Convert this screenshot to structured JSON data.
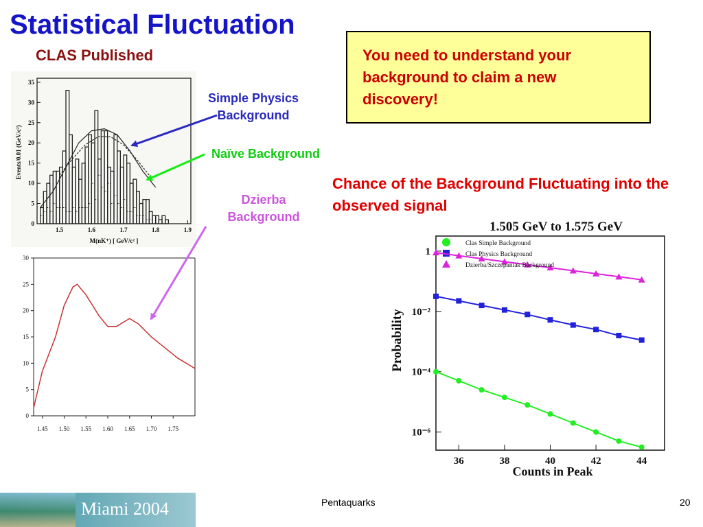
{
  "slide": {
    "title": "Statistical Fluctuation",
    "subtitle": "CLAS Published",
    "callout": "You need to understand your background to claim a new discovery!",
    "labels": {
      "simple_physics": [
        "Simple Physics",
        "Background"
      ],
      "naive": "Naïve Background",
      "dzierba": [
        "Dzierba",
        "Background"
      ]
    },
    "chance_text": "Chance of the Background Fluctuating into the observed signal",
    "footer": {
      "banner": "Miami 2004",
      "center": "Pentaquarks",
      "page": "20"
    },
    "colors": {
      "title": "#1414c8",
      "subtitle": "#8b1010",
      "callout_bg": "#ffff99",
      "callout_text": "#cc0000",
      "arrow_blue": "#2a2ac0",
      "arrow_green": "#10ee10",
      "arrow_violet": "#cc66ee"
    }
  },
  "chart_data": [
    {
      "type": "bar",
      "ylabel": "Events/0.01 (GeV/c²)",
      "xlabel": "M(nK⁺) [ GeV/c² ]",
      "x_ticks": [
        "1.5",
        "1.6",
        "1.7",
        "1.8",
        "1.9"
      ],
      "y_ticks": [
        "0",
        "5",
        "10",
        "15",
        "20",
        "25",
        "30",
        "35"
      ],
      "xlim": [
        1.43,
        1.91
      ],
      "ylim": [
        0,
        36
      ],
      "bin_width": 0.01,
      "series": [
        {
          "values": [
            0,
            4,
            8,
            10,
            12,
            13,
            13,
            14,
            18,
            33,
            22,
            14,
            16,
            11,
            15,
            19,
            22,
            20,
            28,
            16,
            23,
            23,
            14,
            13,
            22,
            18,
            14,
            17,
            15,
            10,
            11,
            8,
            5,
            6,
            6,
            3,
            2,
            2,
            1,
            2,
            1,
            0,
            0,
            0
          ]
        },
        {
          "values": [
            0,
            2,
            3,
            4,
            3,
            5,
            4,
            4,
            4,
            3,
            3,
            4,
            3,
            4,
            4,
            4,
            5,
            10,
            6,
            12,
            9,
            8,
            10,
            5,
            7,
            5,
            4,
            6,
            3,
            3,
            4,
            2,
            2,
            2,
            1,
            1,
            0,
            0,
            0,
            0,
            0,
            0,
            0,
            0
          ]
        }
      ],
      "curves": [
        {
          "style": "solid",
          "x": [
            1.44,
            1.48,
            1.52,
            1.56,
            1.6,
            1.64,
            1.68,
            1.72,
            1.76,
            1.8
          ],
          "y": [
            4,
            8,
            14,
            20,
            23,
            23.5,
            22,
            18,
            13,
            9
          ]
        },
        {
          "style": "dashed",
          "x": [
            1.5,
            1.54,
            1.58,
            1.62,
            1.66,
            1.7,
            1.74,
            1.78
          ],
          "y": [
            12,
            16,
            19.5,
            21.5,
            21.5,
            19.5,
            16,
            12
          ]
        }
      ]
    },
    {
      "type": "line",
      "x_ticks": [
        "1.45",
        "1.50",
        "1.55",
        "1.60",
        "1.65",
        "1.70",
        "1.75"
      ],
      "y_ticks": [
        "0",
        "5",
        "10",
        "15",
        "20",
        "25",
        "30"
      ],
      "xlim": [
        1.43,
        1.8
      ],
      "ylim": [
        0,
        30
      ],
      "series": [
        {
          "color": "#c83232",
          "x": [
            1.43,
            1.45,
            1.48,
            1.5,
            1.52,
            1.53,
            1.55,
            1.58,
            1.6,
            1.62,
            1.64,
            1.65,
            1.67,
            1.7,
            1.73,
            1.76,
            1.8
          ],
          "y": [
            1.5,
            8.5,
            15,
            21,
            24.5,
            25,
            23,
            19,
            17,
            17,
            18,
            18.5,
            17.5,
            15,
            13,
            11,
            9
          ]
        }
      ]
    },
    {
      "type": "scatter",
      "title": "1.505 GeV to 1.575 GeV",
      "xlabel": "Counts in Peak",
      "ylabel": "Probability",
      "x_ticks": [
        "36",
        "38",
        "40",
        "42",
        "44"
      ],
      "y_ticks": [
        "1",
        "10⁻²",
        "10⁻⁴",
        "10⁻⁶"
      ],
      "log_y": true,
      "xlim": [
        35,
        45
      ],
      "ylim": [
        -6.6,
        0.5
      ],
      "legend_position": "top-left",
      "series": [
        {
          "name": "Clas Simple Background",
          "marker": "circle",
          "color": "#22ee22",
          "x": [
            35,
            36,
            37,
            38,
            39,
            40,
            41,
            42,
            43,
            44
          ],
          "y": [
            -4.0,
            -4.3,
            -4.6,
            -4.85,
            -5.1,
            -5.4,
            -5.7,
            -6.0,
            -6.3,
            -6.5
          ]
        },
        {
          "name": "Clas Physics Background",
          "marker": "square",
          "color": "#2222dd",
          "x": [
            35,
            36,
            37,
            38,
            39,
            40,
            41,
            42,
            43,
            44
          ],
          "y": [
            -1.5,
            -1.65,
            -1.8,
            -1.95,
            -2.1,
            -2.28,
            -2.45,
            -2.6,
            -2.8,
            -2.95
          ]
        },
        {
          "name": "Dzierba/Szczepaniak Background",
          "marker": "triangle",
          "color": "#dd22dd",
          "x": [
            35,
            36,
            37,
            38,
            39,
            40,
            41,
            42,
            43,
            44
          ],
          "y": [
            -0.05,
            -0.15,
            -0.25,
            -0.35,
            -0.45,
            -0.55,
            -0.65,
            -0.75,
            -0.85,
            -0.95
          ]
        }
      ]
    }
  ]
}
